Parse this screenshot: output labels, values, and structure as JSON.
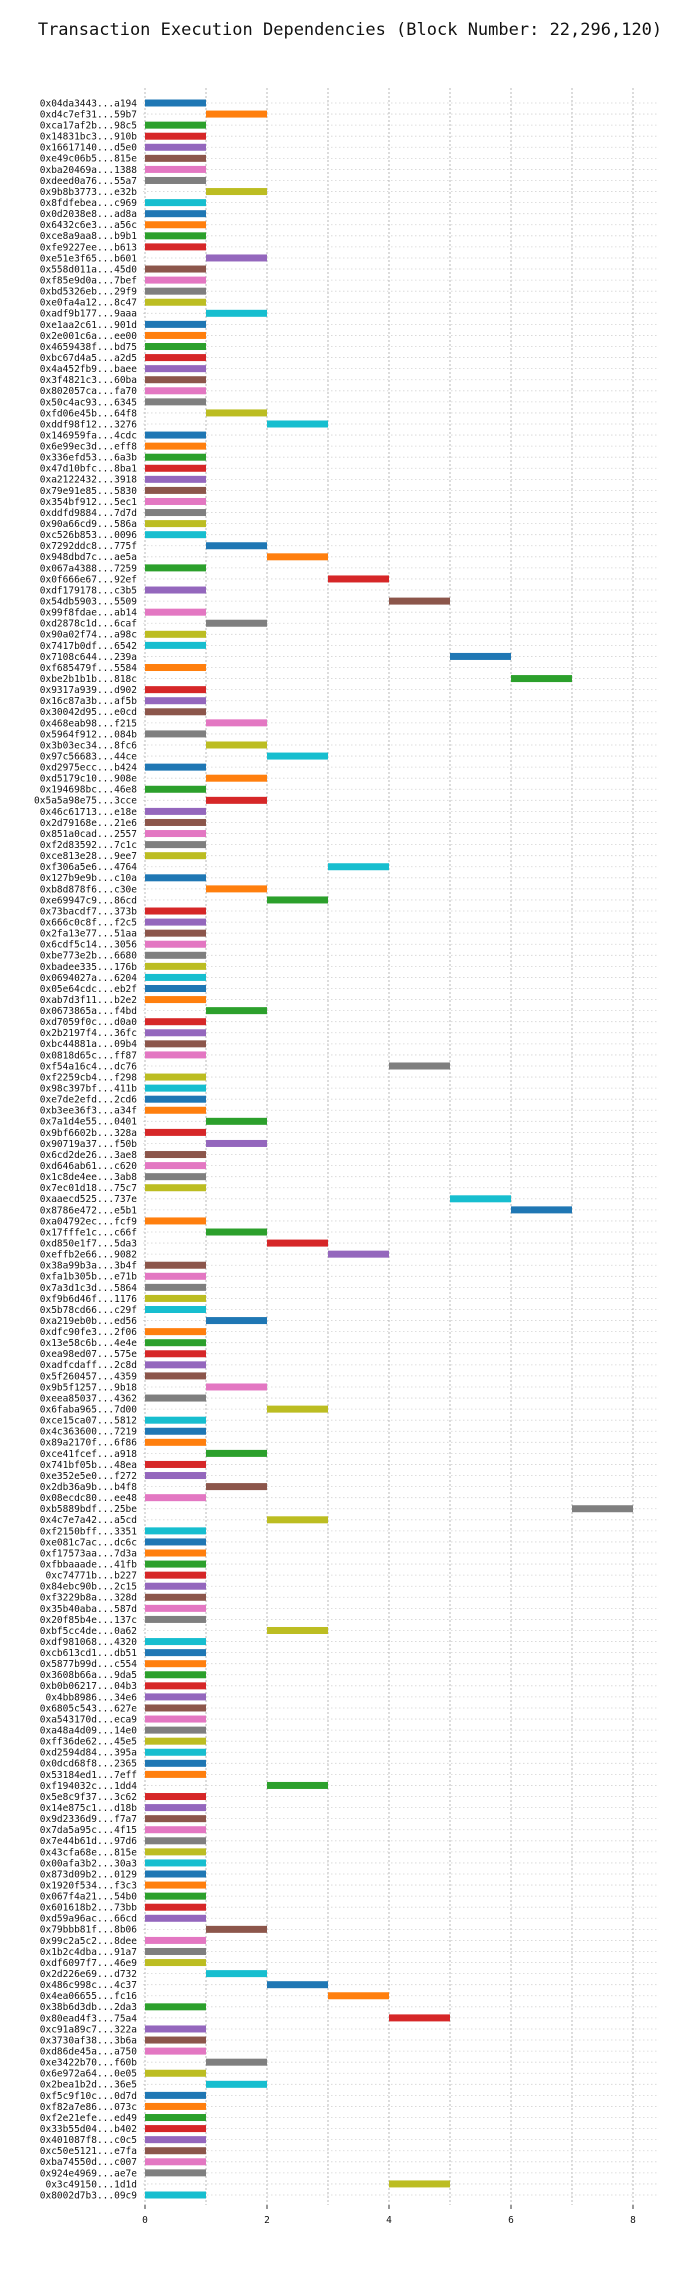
{
  "chart_data": {
    "type": "bar",
    "orientation": "horizontal-gantt",
    "title": "Transaction Execution Dependencies (Block Number: 22,296,120)",
    "xlabel": "",
    "ylabel": "",
    "xlim": [
      0,
      8.5
    ],
    "xticks": [
      0,
      2,
      4,
      6,
      8
    ],
    "grid": "vertical dotted",
    "palette": [
      "#1f77b4",
      "#ff7f0e",
      "#2ca02c",
      "#d62728",
      "#9467bd",
      "#8c564b",
      "#e377c2",
      "#7f7f7f",
      "#bcbd22",
      "#17becf"
    ],
    "rows": [
      {
        "tx": "0x04da3443...a194",
        "start": 0
      },
      {
        "tx": "0xd4c7ef31...59b7",
        "start": 1
      },
      {
        "tx": "0xca17af2b...98c5",
        "start": 0
      },
      {
        "tx": "0x14831bc3...910b",
        "start": 0
      },
      {
        "tx": "0x16617140...d5e0",
        "start": 0
      },
      {
        "tx": "0xe49c06b5...815e",
        "start": 0
      },
      {
        "tx": "0xba20469a...1388",
        "start": 0
      },
      {
        "tx": "0xdeed0a76...55a7",
        "start": 0
      },
      {
        "tx": "0x9b8b3773...e32b",
        "start": 1
      },
      {
        "tx": "0x8fdfebea...c969",
        "start": 0
      },
      {
        "tx": "0x0d2038e8...ad8a",
        "start": 0
      },
      {
        "tx": "0x6432c6e3...a56c",
        "start": 0
      },
      {
        "tx": "0xce8a9aa8...b9b1",
        "start": 0
      },
      {
        "tx": "0xfe9227ee...b613",
        "start": 0
      },
      {
        "tx": "0xe51e3f65...b601",
        "start": 1
      },
      {
        "tx": "0x558d011a...45d0",
        "start": 0
      },
      {
        "tx": "0xf85e9d0a...7bef",
        "start": 0
      },
      {
        "tx": "0xbd5326eb...29f9",
        "start": 0
      },
      {
        "tx": "0xe0fa4a12...8c47",
        "start": 0
      },
      {
        "tx": "0xadf9b177...9aaa",
        "start": 1
      },
      {
        "tx": "0xe1aa2c61...901d",
        "start": 0
      },
      {
        "tx": "0x2e001c6a...ee00",
        "start": 0
      },
      {
        "tx": "0x4659438f...bd75",
        "start": 0
      },
      {
        "tx": "0xbc67d4a5...a2d5",
        "start": 0
      },
      {
        "tx": "0x4a452fb9...baee",
        "start": 0
      },
      {
        "tx": "0x3f4821c3...60ba",
        "start": 0
      },
      {
        "tx": "0x802057ca...fa70",
        "start": 0
      },
      {
        "tx": "0x50c4ac93...6345",
        "start": 0
      },
      {
        "tx": "0xfd06e45b...64f8",
        "start": 1
      },
      {
        "tx": "0xddf98f12...3276",
        "start": 2
      },
      {
        "tx": "0x146959fa...4cdc",
        "start": 0
      },
      {
        "tx": "0x6e99ec3d...eff8",
        "start": 0
      },
      {
        "tx": "0x336efd53...6a3b",
        "start": 0
      },
      {
        "tx": "0x47d10bfc...8ba1",
        "start": 0
      },
      {
        "tx": "0xa2122432...3918",
        "start": 0
      },
      {
        "tx": "0x79e91e85...5830",
        "start": 0
      },
      {
        "tx": "0x354bf912...5ec1",
        "start": 0
      },
      {
        "tx": "0xddfd9884...7d7d",
        "start": 0
      },
      {
        "tx": "0x90a66cd9...586a",
        "start": 0
      },
      {
        "tx": "0xc526b853...0096",
        "start": 0
      },
      {
        "tx": "0x7292ddc8...775f",
        "start": 1
      },
      {
        "tx": "0x948dbd7c...ae5a",
        "start": 2
      },
      {
        "tx": "0x067a4388...7259",
        "start": 0
      },
      {
        "tx": "0x0f666e67...92ef",
        "start": 3
      },
      {
        "tx": "0xdf179178...c3b5",
        "start": 0
      },
      {
        "tx": "0x54db5903...5509",
        "start": 4
      },
      {
        "tx": "0x99f8fdae...ab14",
        "start": 0
      },
      {
        "tx": "0xd2878c1d...6caf",
        "start": 1
      },
      {
        "tx": "0x90a02f74...a98c",
        "start": 0
      },
      {
        "tx": "0x7417b0df...6542",
        "start": 0
      },
      {
        "tx": "0x7108c644...239a",
        "start": 5
      },
      {
        "tx": "0xf685479f...5584",
        "start": 0
      },
      {
        "tx": "0xbe2b1b1b...818c",
        "start": 6
      },
      {
        "tx": "0x9317a939...d902",
        "start": 0
      },
      {
        "tx": "0x16c87a3b...af5b",
        "start": 0
      },
      {
        "tx": "0x30042d95...e0cd",
        "start": 0
      },
      {
        "tx": "0x468eab98...f215",
        "start": 1
      },
      {
        "tx": "0x5964f912...084b",
        "start": 0
      },
      {
        "tx": "0x3b03ec34...8fc6",
        "start": 1
      },
      {
        "tx": "0x97c56683...44ce",
        "start": 2
      },
      {
        "tx": "0xd2975ecc...b424",
        "start": 0
      },
      {
        "tx": "0xd5179c10...908e",
        "start": 1
      },
      {
        "tx": "0x194698bc...46e8",
        "start": 0
      },
      {
        "tx": "0x5a5a98e75...3cce",
        "start": 1
      },
      {
        "tx": "0x46c61713...e18e",
        "start": 0
      },
      {
        "tx": "0x2d79168e...21e6",
        "start": 0
      },
      {
        "tx": "0x851a0cad...2557",
        "start": 0
      },
      {
        "tx": "0xf2d83592...7c1c",
        "start": 0
      },
      {
        "tx": "0xce813e28...9ee7",
        "start": 0
      },
      {
        "tx": "0xf306a5e6...4764",
        "start": 3
      },
      {
        "tx": "0x127b9e9b...c10a",
        "start": 0
      },
      {
        "tx": "0xb8d878f6...c30e",
        "start": 1
      },
      {
        "tx": "0xe69947c9...86cd",
        "start": 2
      },
      {
        "tx": "0x73bacdf7...373b",
        "start": 0
      },
      {
        "tx": "0x666c0c8f...f2c5",
        "start": 0
      },
      {
        "tx": "0x2fa13e77...51aa",
        "start": 0
      },
      {
        "tx": "0x6cdf5c14...3056",
        "start": 0
      },
      {
        "tx": "0xbe773e2b...6680",
        "start": 0
      },
      {
        "tx": "0xbadee335...176b",
        "start": 0
      },
      {
        "tx": "0x0694027a...6204",
        "start": 0
      },
      {
        "tx": "0x05e64cdc...eb2f",
        "start": 0
      },
      {
        "tx": "0xab7d3f11...b2e2",
        "start": 0
      },
      {
        "tx": "0x0673865a...f4bd",
        "start": 1
      },
      {
        "tx": "0xd7059f0c...d0a0",
        "start": 0
      },
      {
        "tx": "0x2b2197f4...36fc",
        "start": 0
      },
      {
        "tx": "0xbc44881a...09b4",
        "start": 0
      },
      {
        "tx": "0x0818d65c...ff87",
        "start": 0
      },
      {
        "tx": "0xf54a16c4...dc76",
        "start": 4
      },
      {
        "tx": "0xf2259cb4...f298",
        "start": 0
      },
      {
        "tx": "0x98c397bf...411b",
        "start": 0
      },
      {
        "tx": "0xe7de2efd...2cd6",
        "start": 0
      },
      {
        "tx": "0xb3ee36f3...a34f",
        "start": 0
      },
      {
        "tx": "0x7a1d4e55...0401",
        "start": 1
      },
      {
        "tx": "0x9bf6602b...328a",
        "start": 0
      },
      {
        "tx": "0x90719a37...f50b",
        "start": 1
      },
      {
        "tx": "0x6cd2de26...3ae8",
        "start": 0
      },
      {
        "tx": "0xd646ab61...c620",
        "start": 0
      },
      {
        "tx": "0x1c8de4ee...3ab8",
        "start": 0
      },
      {
        "tx": "0x7ec01d18...75c7",
        "start": 0
      },
      {
        "tx": "0xaaecd525...737e",
        "start": 5
      },
      {
        "tx": "0x8786e472...e5b1",
        "start": 6
      },
      {
        "tx": "0xa04792ec...fcf9",
        "start": 0
      },
      {
        "tx": "0x17fffe1c...c66f",
        "start": 1
      },
      {
        "tx": "0xd850e1f7...5da3",
        "start": 2
      },
      {
        "tx": "0xeffb2e66...9082",
        "start": 3
      },
      {
        "tx": "0x38a99b3a...3b4f",
        "start": 0
      },
      {
        "tx": "0xfa1b305b...e71b",
        "start": 0
      },
      {
        "tx": "0x7a3d1c3d...5864",
        "start": 0
      },
      {
        "tx": "0xf9b6d46f...1176",
        "start": 0
      },
      {
        "tx": "0x5b78cd66...c29f",
        "start": 0
      },
      {
        "tx": "0xa219eb0b...ed56",
        "start": 1
      },
      {
        "tx": "0xdfc90fe3...2f06",
        "start": 0
      },
      {
        "tx": "0x13e58c6b...4e4e",
        "start": 0
      },
      {
        "tx": "0xea98ed07...575e",
        "start": 0
      },
      {
        "tx": "0xadfcdaff...2c8d",
        "start": 0
      },
      {
        "tx": "0x5f260457...4359",
        "start": 0
      },
      {
        "tx": "0x9b5f1257...9b18",
        "start": 1
      },
      {
        "tx": "0xeea85037...4362",
        "start": 0
      },
      {
        "tx": "0x6faba965...7d00",
        "start": 2
      },
      {
        "tx": "0xce15ca07...5812",
        "start": 0
      },
      {
        "tx": "0x4c363600...7219",
        "start": 0
      },
      {
        "tx": "0x89a2170f...6f86",
        "start": 0
      },
      {
        "tx": "0xce41fcef...a918",
        "start": 1
      },
      {
        "tx": "0x741bf05b...48ea",
        "start": 0
      },
      {
        "tx": "0xe352e5e0...f272",
        "start": 0
      },
      {
        "tx": "0x2db36a9b...b4f8",
        "start": 1
      },
      {
        "tx": "0x08ecdc80...ee48",
        "start": 0
      },
      {
        "tx": "0xb5889bdf...25be",
        "start": 7
      },
      {
        "tx": "0x4c7e7a42...a5cd",
        "start": 2
      },
      {
        "tx": "0xf2150bff...3351",
        "start": 0
      },
      {
        "tx": "0xe081c7ac...dc6c",
        "start": 0
      },
      {
        "tx": "0xf17573aa...7d3a",
        "start": 0
      },
      {
        "tx": "0xfbbaaade...41fb",
        "start": 0
      },
      {
        "tx": "0xc74771b...b227",
        "start": 0
      },
      {
        "tx": "0x84ebc90b...2c15",
        "start": 0
      },
      {
        "tx": "0xf3229b8a...328d",
        "start": 0
      },
      {
        "tx": "0x35b40aba...587d",
        "start": 0
      },
      {
        "tx": "0x20f85b4e...137c",
        "start": 0
      },
      {
        "tx": "0xbf5cc4de...0a62",
        "start": 2
      },
      {
        "tx": "0xdf981068...4320",
        "start": 0
      },
      {
        "tx": "0xcb613cd1...db51",
        "start": 0
      },
      {
        "tx": "0x5877b99d...c554",
        "start": 0
      },
      {
        "tx": "0x3608b66a...9da5",
        "start": 0
      },
      {
        "tx": "0xb0b06217...04b3",
        "start": 0
      },
      {
        "tx": "0x4bb8986...34e6",
        "start": 0
      },
      {
        "tx": "0x6805c543...627e",
        "start": 0
      },
      {
        "tx": "0xa543170d...eca9",
        "start": 0
      },
      {
        "tx": "0xa48a4d09...14e0",
        "start": 0
      },
      {
        "tx": "0xff36de62...45e5",
        "start": 0
      },
      {
        "tx": "0xd2594d84...395a",
        "start": 0
      },
      {
        "tx": "0x0dcd68f8...2365",
        "start": 0
      },
      {
        "tx": "0x53184ed1...7eff",
        "start": 0
      },
      {
        "tx": "0xf194032c...1dd4",
        "start": 2
      },
      {
        "tx": "0x5e8c9f37...3c62",
        "start": 0
      },
      {
        "tx": "0x14e875c1...d18b",
        "start": 0
      },
      {
        "tx": "0x9d2336d9...f7a7",
        "start": 0
      },
      {
        "tx": "0x7da5a95c...4f15",
        "start": 0
      },
      {
        "tx": "0x7e44b61d...97d6",
        "start": 0
      },
      {
        "tx": "0x43cfa68e...815e",
        "start": 0
      },
      {
        "tx": "0x00afa3b2...30a3",
        "start": 0
      },
      {
        "tx": "0x873d09b2...0129",
        "start": 0
      },
      {
        "tx": "0x1920f534...f3c3",
        "start": 0
      },
      {
        "tx": "0x067f4a21...54b0",
        "start": 0
      },
      {
        "tx": "0x601618b2...73bb",
        "start": 0
      },
      {
        "tx": "0xd59a96ac...66cd",
        "start": 0
      },
      {
        "tx": "0x79bbb81f...8b06",
        "start": 1
      },
      {
        "tx": "0x99c2a5c2...8dee",
        "start": 0
      },
      {
        "tx": "0x1b2c4dba...91a7",
        "start": 0
      },
      {
        "tx": "0xdf6097f7...46e9",
        "start": 0
      },
      {
        "tx": "0x2d226e69...d732",
        "start": 1
      },
      {
        "tx": "0x486c998c...4c37",
        "start": 2
      },
      {
        "tx": "0x4ea06655...fc16",
        "start": 3
      },
      {
        "tx": "0x38b6d3db...2da3",
        "start": 0
      },
      {
        "tx": "0x80ead4f3...75a4",
        "start": 4
      },
      {
        "tx": "0xc91a89c7...322a",
        "start": 0
      },
      {
        "tx": "0x3730af38...3b6a",
        "start": 0
      },
      {
        "tx": "0xd86de45a...a750",
        "start": 0
      },
      {
        "tx": "0xe3422b70...f60b",
        "start": 1
      },
      {
        "tx": "0x6e972a64...0e05",
        "start": 0
      },
      {
        "tx": "0x2bea1b2d...36e5",
        "start": 1
      },
      {
        "tx": "0xf5c9f10c...0d7d",
        "start": 0
      },
      {
        "tx": "0xf82a7e86...073c",
        "start": 0
      },
      {
        "tx": "0xf2e21efe...ed49",
        "start": 0
      },
      {
        "tx": "0x33b55d04...b402",
        "start": 0
      },
      {
        "tx": "0x401087f8...c0c5",
        "start": 0
      },
      {
        "tx": "0xc50e5121...e7fa",
        "start": 0
      },
      {
        "tx": "0xba74550d...c007",
        "start": 0
      },
      {
        "tx": "0x924e4969...ae7e",
        "start": 0
      },
      {
        "tx": "0x3c49150...1d1d",
        "start": 4
      },
      {
        "tx": "0x8002d7b3...09c9",
        "start": 0
      }
    ]
  }
}
